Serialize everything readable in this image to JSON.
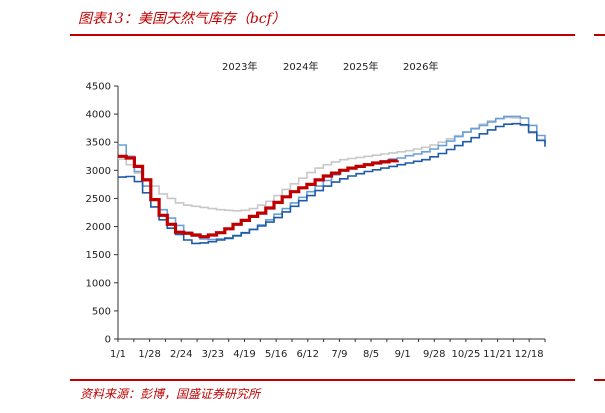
{
  "figure": {
    "title": "图表13：美国天然气库存（bcf）",
    "source": "资料来源：彭博，国盛证券研究所",
    "accent_color": "#c00000"
  },
  "chart_data": {
    "type": "line",
    "title": "",
    "xlabel": "",
    "ylabel": "",
    "unit": "bcf",
    "x_tick_labels": [
      "1/1",
      "1/28",
      "2/24",
      "3/23",
      "4/19",
      "5/16",
      "6/12",
      "7/9",
      "8/5",
      "9/1",
      "9/28",
      "10/25",
      "11/21",
      "12/18"
    ],
    "y_ticks": [
      0,
      500,
      1000,
      1500,
      2000,
      2500,
      3000,
      3500,
      4000,
      4500
    ],
    "ylim": [
      0,
      4500
    ],
    "xlim": [
      1,
      365
    ],
    "grid": false,
    "legend_position": "top",
    "step": true,
    "series": [
      {
        "name": "2023年",
        "color": "#c8c8c8",
        "x": [
          1,
          8,
          15,
          22,
          29,
          36,
          43,
          50,
          57,
          64,
          71,
          78,
          85,
          92,
          99,
          106,
          113,
          120,
          127,
          134,
          141,
          148,
          155,
          162,
          169,
          176,
          183,
          190,
          197,
          204,
          211,
          218,
          225,
          232,
          239,
          246,
          253,
          260,
          267,
          274,
          281,
          288,
          295,
          302,
          309,
          316,
          323,
          330,
          337,
          344,
          351,
          358,
          365
        ],
        "values": [
          3200,
          3100,
          2950,
          2850,
          2720,
          2580,
          2500,
          2420,
          2380,
          2360,
          2340,
          2320,
          2300,
          2290,
          2280,
          2290,
          2320,
          2380,
          2450,
          2550,
          2660,
          2760,
          2860,
          2960,
          3040,
          3100,
          3150,
          3190,
          3210,
          3230,
          3250,
          3270,
          3290,
          3310,
          3330,
          3350,
          3380,
          3410,
          3450,
          3500,
          3560,
          3620,
          3680,
          3750,
          3820,
          3880,
          3920,
          3940,
          3930,
          3800,
          3660,
          3550,
          3480
        ]
      },
      {
        "name": "2024年",
        "color": "#6a9fd8",
        "x": [
          1,
          8,
          15,
          22,
          29,
          36,
          43,
          50,
          57,
          64,
          71,
          78,
          85,
          92,
          99,
          106,
          113,
          120,
          127,
          134,
          141,
          148,
          155,
          162,
          169,
          176,
          183,
          190,
          197,
          204,
          211,
          218,
          225,
          232,
          239,
          246,
          253,
          260,
          267,
          274,
          281,
          288,
          295,
          302,
          309,
          316,
          323,
          330,
          337,
          344,
          351,
          358,
          365
        ],
        "values": [
          3450,
          3250,
          2980,
          2720,
          2480,
          2300,
          2150,
          2020,
          1900,
          1830,
          1780,
          1770,
          1780,
          1800,
          1830,
          1880,
          1950,
          2030,
          2120,
          2220,
          2320,
          2420,
          2520,
          2620,
          2720,
          2820,
          2920,
          3000,
          3050,
          3080,
          3110,
          3140,
          3170,
          3200,
          3220,
          3260,
          3290,
          3330,
          3380,
          3440,
          3520,
          3600,
          3680,
          3740,
          3800,
          3860,
          3920,
          3960,
          3960,
          3930,
          3800,
          3620,
          3480
        ]
      },
      {
        "name": "2025年",
        "color": "#1f5aa8",
        "x": [
          1,
          8,
          15,
          22,
          29,
          36,
          43,
          50,
          57,
          64,
          71,
          78,
          85,
          92,
          99,
          106,
          113,
          120,
          127,
          134,
          141,
          148,
          155,
          162,
          169,
          176,
          183,
          190,
          197,
          204,
          211,
          218,
          225,
          232,
          239,
          246,
          253,
          260,
          267,
          274,
          281,
          288,
          295,
          302,
          309,
          316,
          323,
          330,
          337,
          344,
          351,
          358,
          365
        ],
        "values": [
          2880,
          2890,
          2800,
          2600,
          2350,
          2120,
          1970,
          1860,
          1760,
          1700,
          1710,
          1730,
          1760,
          1790,
          1840,
          1890,
          1950,
          2010,
          2080,
          2160,
          2260,
          2360,
          2460,
          2550,
          2640,
          2720,
          2790,
          2850,
          2900,
          2940,
          2980,
          3010,
          3040,
          3070,
          3100,
          3130,
          3160,
          3190,
          3240,
          3300,
          3370,
          3440,
          3510,
          3580,
          3650,
          3720,
          3780,
          3820,
          3830,
          3810,
          3680,
          3530,
          3420
        ]
      },
      {
        "name": "2026年",
        "color": "#c00000",
        "x": [
          1,
          8,
          15,
          22,
          29,
          36,
          43,
          50,
          57,
          64,
          71,
          78,
          85,
          92,
          99,
          106,
          113,
          120,
          127,
          134,
          141,
          148,
          155,
          162,
          169,
          176,
          183,
          190,
          197,
          204,
          211,
          218,
          225,
          232,
          239
        ],
        "values": [
          3250,
          3220,
          3070,
          2830,
          2480,
          2200,
          2040,
          1900,
          1880,
          1850,
          1820,
          1850,
          1890,
          1960,
          2040,
          2110,
          2180,
          2240,
          2330,
          2430,
          2530,
          2620,
          2690,
          2750,
          2830,
          2900,
          2950,
          3000,
          3040,
          3070,
          3100,
          3130,
          3150,
          3170,
          3180
        ]
      }
    ]
  }
}
